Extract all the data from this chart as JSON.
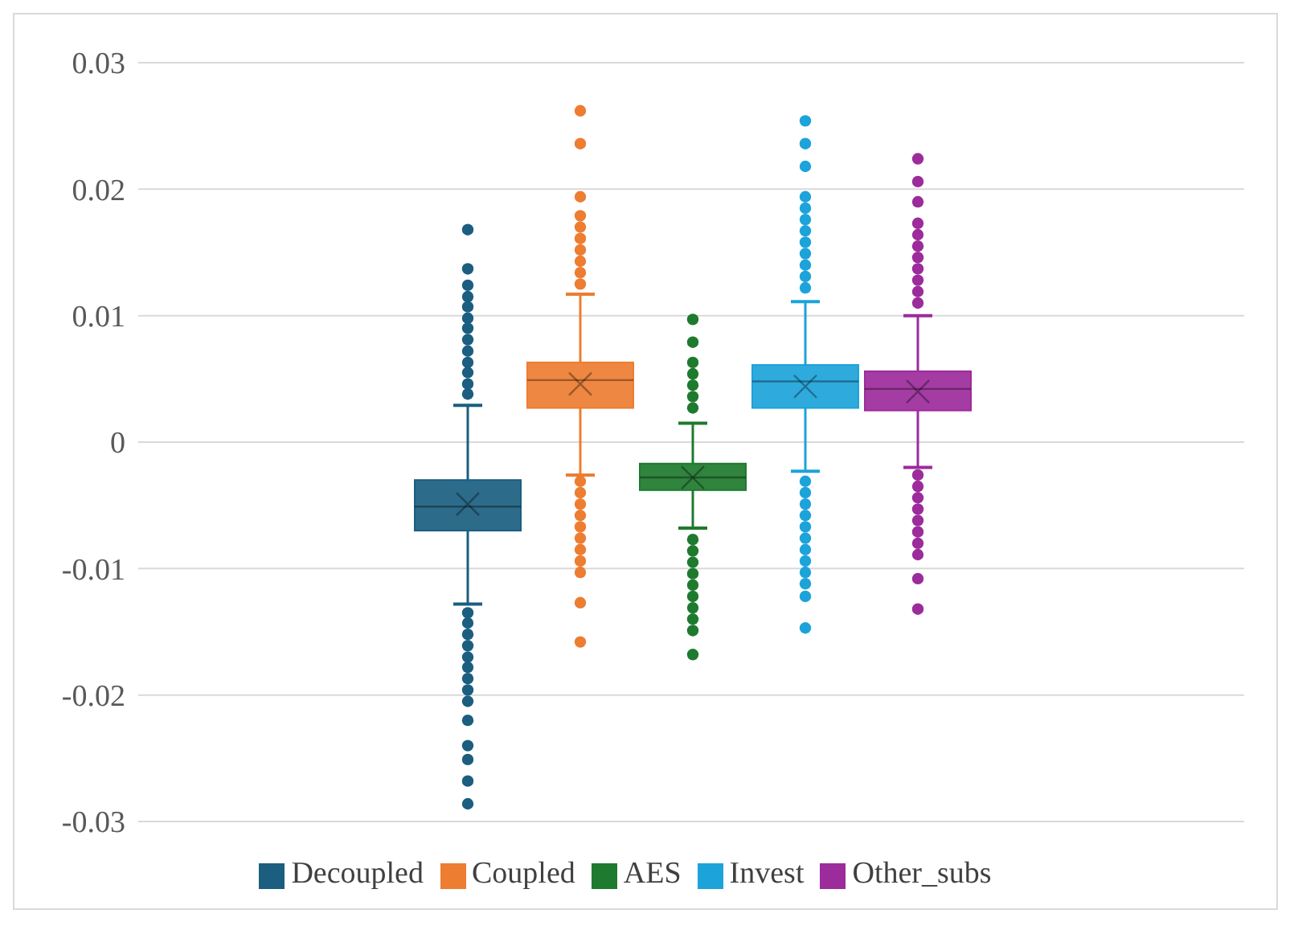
{
  "chart_data": {
    "type": "box",
    "categories": [
      null
    ],
    "ylim": [
      -0.03,
      0.03
    ],
    "yticks": [
      -0.03,
      -0.02,
      -0.01,
      0,
      0.01,
      0.02,
      0.03
    ],
    "grid": "y",
    "legend": "bottom",
    "tick_labels": "y",
    "series": [
      {
        "name": "Decoupled",
        "color": "#1b5e80",
        "boxes": [
          {
            "low": -0.0128,
            "q1": -0.007,
            "median": -0.0051,
            "q3": -0.003,
            "high": 0.0029,
            "mean": -0.0049,
            "outliers": [
              0.0168,
              0.0137,
              0.0124,
              0.0115,
              0.0107,
              0.0098,
              0.009,
              0.0081,
              0.0072,
              0.0063,
              0.0055,
              0.0046,
              0.0038,
              -0.0135,
              -0.0143,
              -0.0152,
              -0.0161,
              -0.017,
              -0.0178,
              -0.0187,
              -0.0196,
              -0.0205,
              -0.022,
              -0.024,
              -0.0251,
              -0.0268,
              -0.0286
            ]
          }
        ]
      },
      {
        "name": "Coupled",
        "color": "#ed7d31",
        "boxes": [
          {
            "low": -0.0026,
            "q1": 0.0027,
            "median": 0.0049,
            "q3": 0.0063,
            "high": 0.0117,
            "mean": 0.0046,
            "outliers": [
              0.0262,
              0.0236,
              0.0194,
              0.0179,
              0.017,
              0.0161,
              0.0152,
              0.0143,
              0.0134,
              0.0125,
              -0.0031,
              -0.004,
              -0.0049,
              -0.0058,
              -0.0067,
              -0.0076,
              -0.0085,
              -0.0094,
              -0.0103,
              -0.0127,
              -0.0158
            ]
          }
        ]
      },
      {
        "name": "AES",
        "color": "#1e7a2e",
        "boxes": [
          {
            "low": -0.0068,
            "q1": -0.0038,
            "median": -0.0028,
            "q3": -0.0017,
            "high": 0.0015,
            "mean": -0.0028,
            "outliers": [
              0.0097,
              0.0079,
              0.0063,
              0.0054,
              0.0045,
              0.0036,
              0.0027,
              -0.0077,
              -0.0086,
              -0.0095,
              -0.0104,
              -0.0113,
              -0.0122,
              -0.0131,
              -0.014,
              -0.0149,
              -0.0168
            ]
          }
        ]
      },
      {
        "name": "Invest",
        "color": "#1ca3da",
        "boxes": [
          {
            "low": -0.0023,
            "q1": 0.0027,
            "median": 0.0048,
            "q3": 0.0061,
            "high": 0.0111,
            "mean": 0.0044,
            "outliers": [
              0.0254,
              0.0236,
              0.0218,
              0.0194,
              0.0185,
              0.0176,
              0.0167,
              0.0158,
              0.0149,
              0.014,
              0.0131,
              0.0122,
              -0.0031,
              -0.004,
              -0.0049,
              -0.0058,
              -0.0067,
              -0.0076,
              -0.0085,
              -0.0094,
              -0.0103,
              -0.0112,
              -0.0122,
              -0.0147
            ]
          }
        ]
      },
      {
        "name": "Other_subs",
        "color": "#9c2b9c",
        "boxes": [
          {
            "low": -0.002,
            "q1": 0.0025,
            "median": 0.0042,
            "q3": 0.0056,
            "high": 0.01,
            "mean": 0.004,
            "outliers": [
              0.0224,
              0.0206,
              0.019,
              0.0173,
              0.0164,
              0.0155,
              0.0146,
              0.0137,
              0.0128,
              0.0119,
              0.011,
              -0.0026,
              -0.0035,
              -0.0044,
              -0.0053,
              -0.0062,
              -0.0071,
              -0.008,
              -0.0089,
              -0.0108,
              -0.0132
            ]
          }
        ]
      }
    ]
  }
}
